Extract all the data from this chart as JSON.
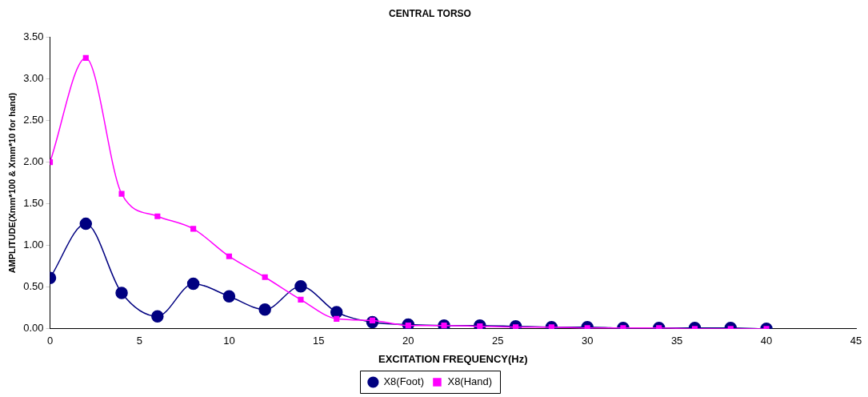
{
  "chart_data": {
    "type": "line",
    "title": "CENTRAL TORSO",
    "xlabel": "EXCITATION FREQUENCY(Hz)",
    "ylabel": "AMPLITUDE(Xmm*100 & Xmm*10 for hand)",
    "x": [
      0,
      2,
      4,
      6,
      8,
      10,
      12,
      14,
      16,
      18,
      20,
      22,
      24,
      26,
      28,
      30,
      32,
      34,
      36,
      38,
      40
    ],
    "series": [
      {
        "name": "X8(Foot)",
        "color": "#000080",
        "marker": "circle",
        "values": [
          0.61,
          1.26,
          0.43,
          0.15,
          0.54,
          0.39,
          0.23,
          0.51,
          0.2,
          0.08,
          0.05,
          0.04,
          0.04,
          0.03,
          0.02,
          0.02,
          0.01,
          0.01,
          0.01,
          0.01,
          0.0
        ]
      },
      {
        "name": "X8(Hand)",
        "color": "#ff00ff",
        "marker": "square",
        "values": [
          2.0,
          3.25,
          1.62,
          1.35,
          1.2,
          0.87,
          0.62,
          0.35,
          0.12,
          0.1,
          0.04,
          0.04,
          0.03,
          0.02,
          0.02,
          0.01,
          0.01,
          0.01,
          0.0,
          0.0,
          0.0
        ]
      }
    ],
    "xlim": [
      0,
      45
    ],
    "xticks": [
      0,
      5,
      10,
      15,
      20,
      25,
      30,
      35,
      40,
      45
    ],
    "ylim": [
      0,
      3.5
    ],
    "yticks": [
      {
        "value": 0,
        "label": "0.00"
      },
      {
        "value": 0.5,
        "label": "0.50"
      },
      {
        "value": 1,
        "label": "1.00"
      },
      {
        "value": 1.5,
        "label": "1.50"
      },
      {
        "value": 2,
        "label": "2.00"
      },
      {
        "value": 2.5,
        "label": "2.50"
      },
      {
        "value": 3,
        "label": "3.00"
      },
      {
        "value": 3.5,
        "label": "3.50"
      }
    ],
    "grid": false,
    "legend": "bottom"
  }
}
